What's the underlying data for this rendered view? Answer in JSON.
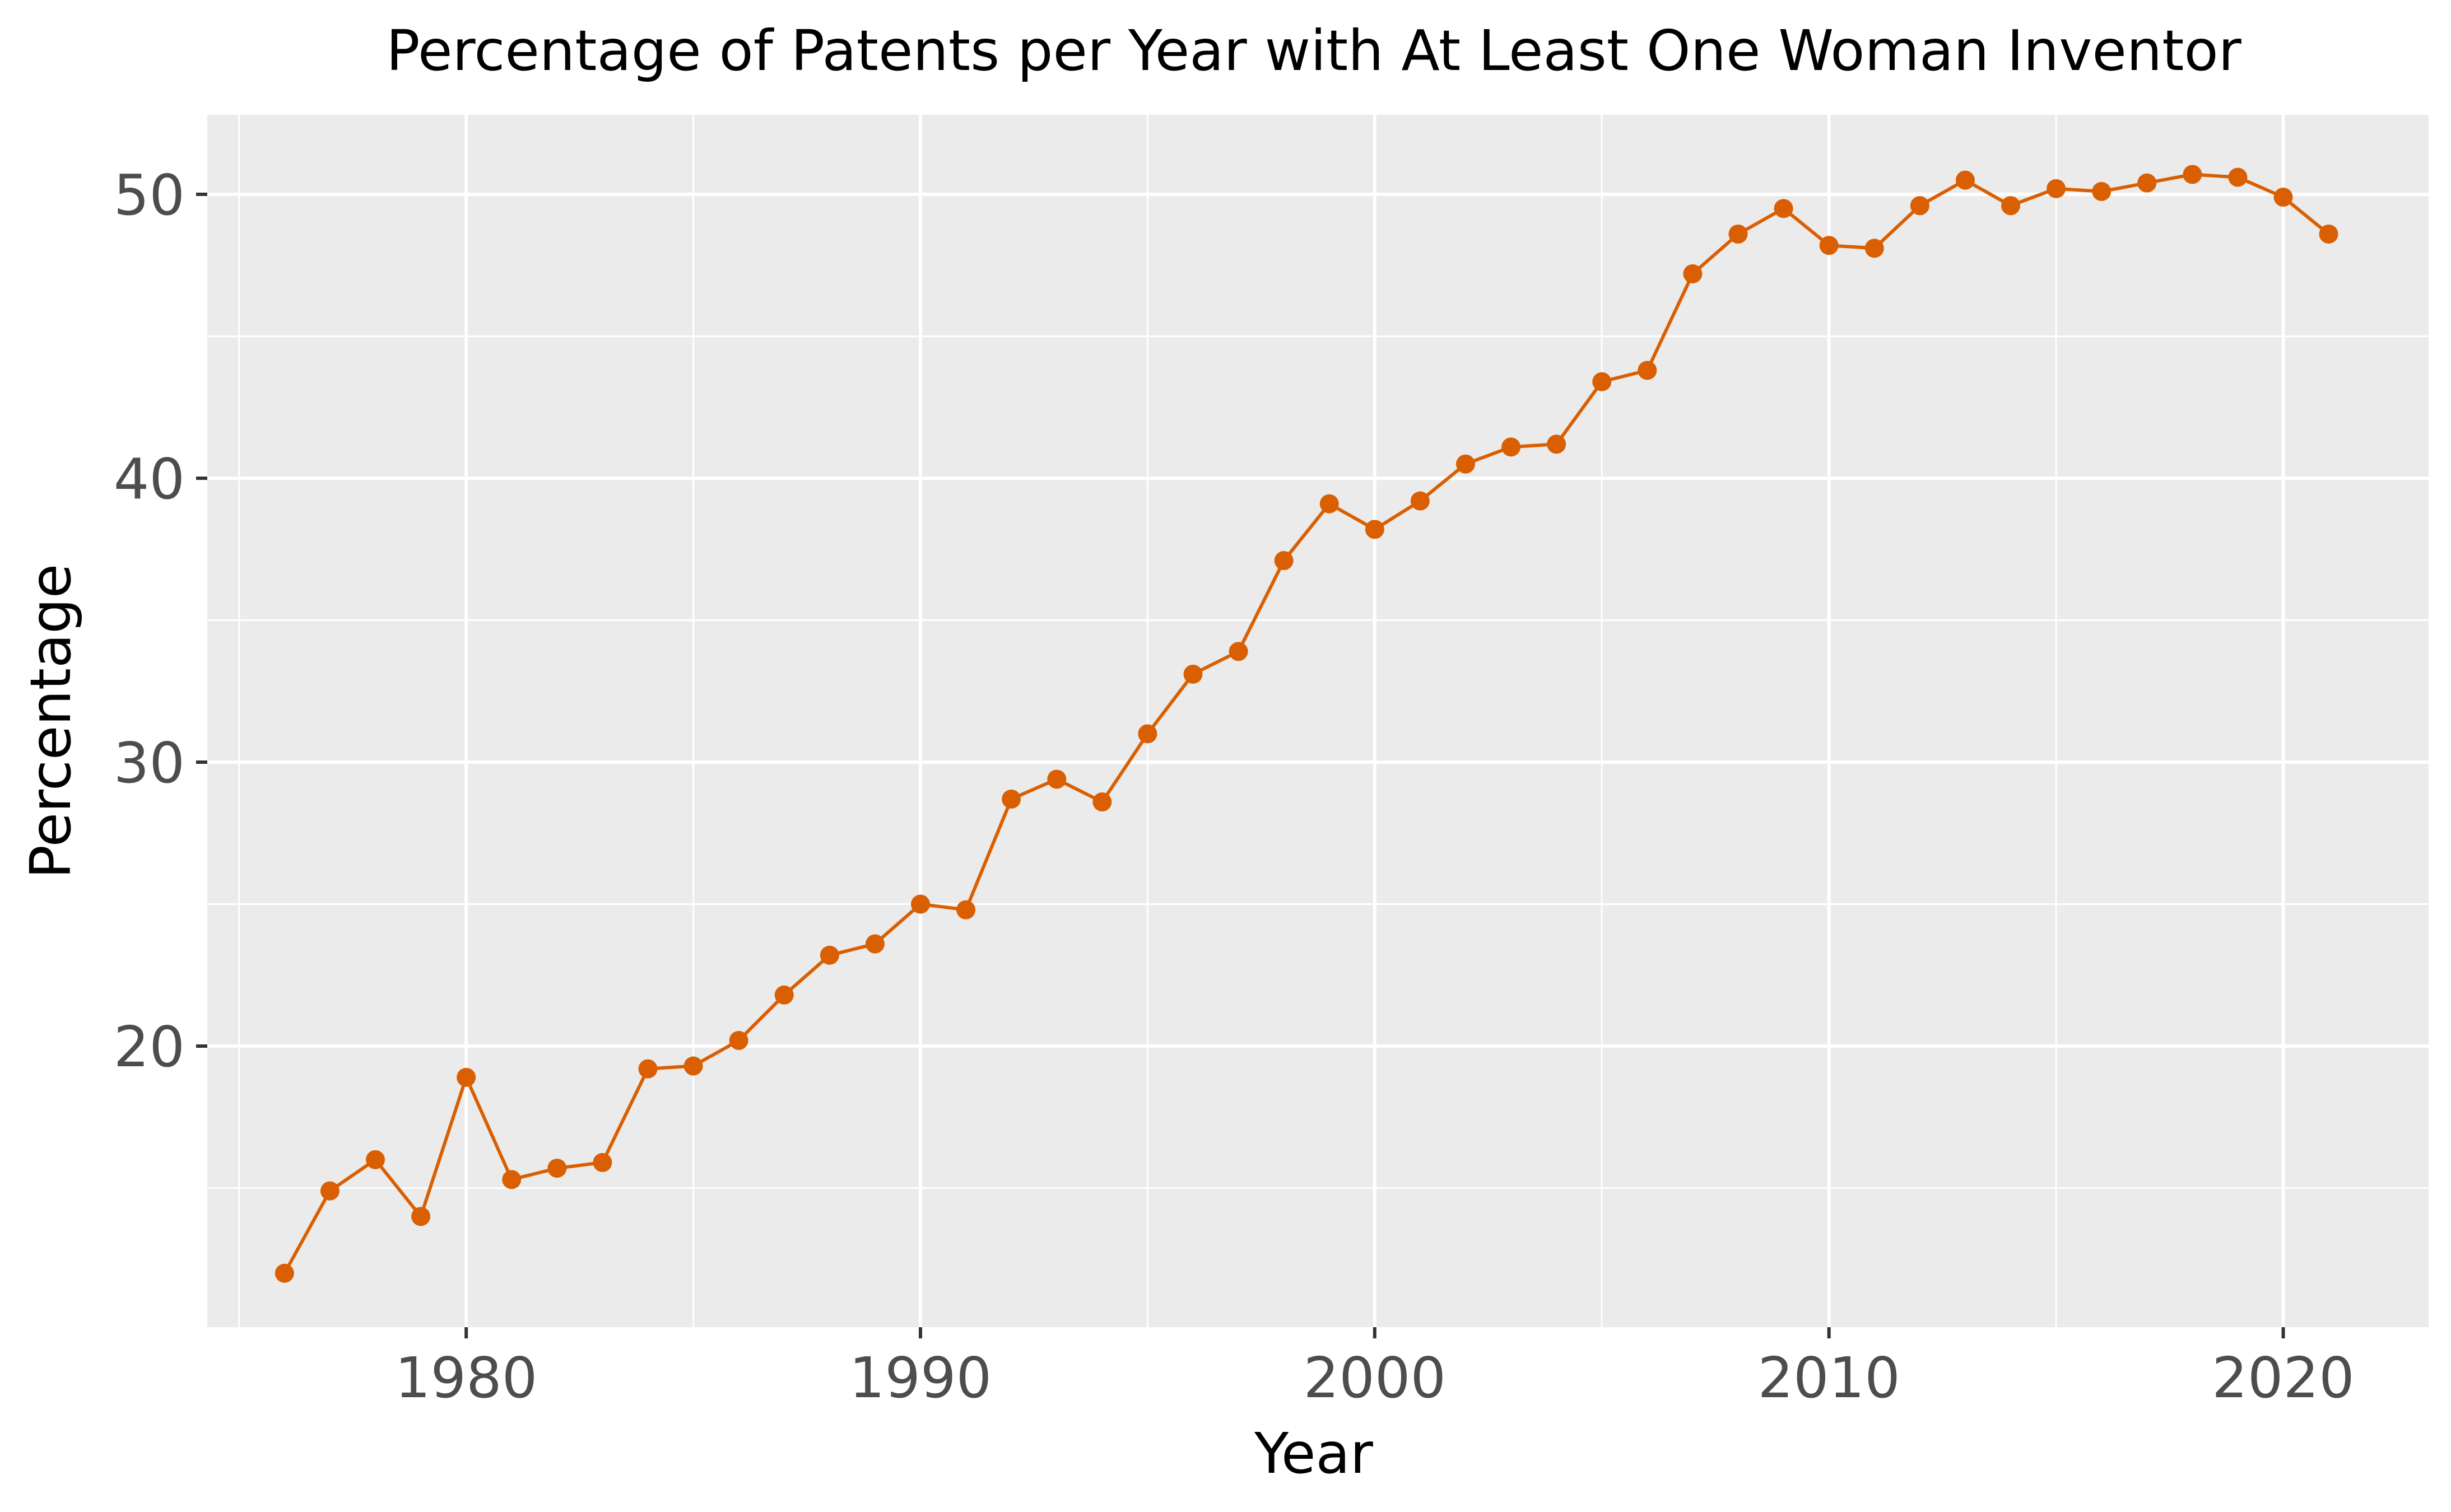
{
  "chart_data": {
    "type": "line",
    "title": "Percentage of Patents per Year with At Least One Woman Inventor",
    "xlabel": "Year",
    "ylabel": "Percentage",
    "xlim": [
      1974.3,
      2023.2
    ],
    "ylim": [
      10.1,
      52.8
    ],
    "x_ticks": [
      1980,
      1990,
      2000,
      2010,
      2020
    ],
    "x_tick_labels": [
      "1980",
      "1990",
      "2000",
      "2010",
      "2020"
    ],
    "y_ticks": [
      20,
      30,
      40,
      50
    ],
    "y_tick_labels": [
      "20",
      "30",
      "40",
      "50"
    ],
    "grid": true,
    "colors": {
      "panel_background": "#ebebeb",
      "grid": "#ffffff",
      "series": "#d95f02",
      "tick_text": "#4d4d4d",
      "axis_ticks": "#333333"
    },
    "x": [
      1976,
      1977,
      1978,
      1979,
      1980,
      1981,
      1982,
      1983,
      1984,
      1985,
      1986,
      1987,
      1988,
      1989,
      1990,
      1991,
      1992,
      1993,
      1994,
      1995,
      1996,
      1997,
      1998,
      1999,
      2000,
      2001,
      2002,
      2003,
      2004,
      2005,
      2006,
      2007,
      2008,
      2009,
      2010,
      2011,
      2012,
      2013,
      2014,
      2015,
      2016,
      2017,
      2018,
      2019,
      2020,
      2021
    ],
    "series": [
      {
        "values": [
          12.0,
          14.9,
          16.0,
          14.0,
          18.9,
          15.3,
          15.7,
          15.9,
          19.2,
          19.3,
          20.2,
          21.8,
          23.2,
          23.6,
          25.0,
          24.8,
          28.7,
          29.4,
          28.6,
          31.0,
          33.1,
          33.9,
          37.1,
          39.1,
          38.2,
          39.2,
          40.5,
          41.1,
          41.2,
          43.4,
          43.8,
          47.2,
          48.6,
          49.5,
          48.2,
          48.1,
          49.6,
          50.5,
          49.6,
          50.2,
          50.1,
          50.4,
          50.7,
          50.6,
          49.9,
          48.6
        ]
      }
    ]
  }
}
